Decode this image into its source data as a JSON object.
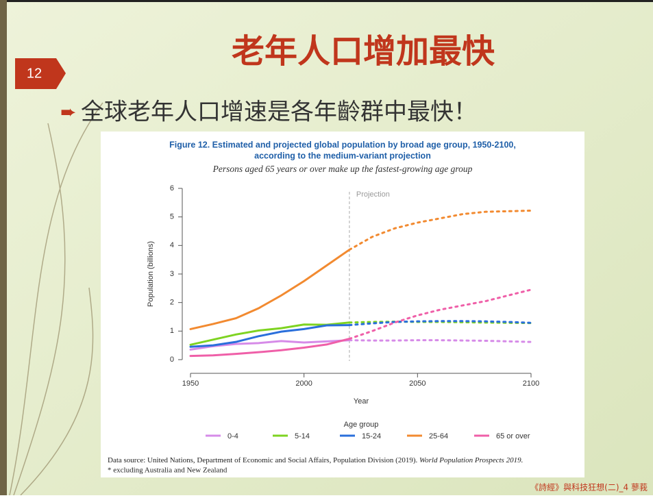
{
  "slide": {
    "number": "12",
    "title": "老年人口增加最快",
    "bullet": "全球老年人口增速是各年齡群中最快！",
    "footer": "《詩經》與科技狂想(二)_4 蓼莪"
  },
  "chart_data": {
    "type": "line",
    "title": [
      "Figure 12. Estimated and projected global population by broad age group, 1950-2100,",
      "according to the medium-variant projection"
    ],
    "subtitle": "Persons aged 65 years or over make up the fastest-growing age group",
    "x_label": "Year",
    "y_label": "Population (billions)",
    "annotation": "Projection",
    "projection_x": 2020,
    "legend_title": "Age group",
    "x": [
      1950,
      1960,
      1970,
      1980,
      1990,
      2000,
      2010,
      2020,
      2030,
      2040,
      2050,
      2060,
      2070,
      2080,
      2090,
      2100
    ],
    "series": [
      {
        "name": "0-4",
        "color": "#d68be8",
        "values": [
          0.35,
          0.47,
          0.55,
          0.58,
          0.65,
          0.6,
          0.64,
          0.68,
          0.67,
          0.67,
          0.68,
          0.68,
          0.67,
          0.66,
          0.64,
          0.62
        ]
      },
      {
        "name": "5-14",
        "color": "#7ed321",
        "values": [
          0.52,
          0.7,
          0.88,
          1.02,
          1.1,
          1.23,
          1.22,
          1.3,
          1.32,
          1.33,
          1.32,
          1.32,
          1.31,
          1.3,
          1.29,
          1.28
        ]
      },
      {
        "name": "15-24",
        "color": "#2a6fdb",
        "values": [
          0.45,
          0.5,
          0.62,
          0.82,
          0.98,
          1.07,
          1.2,
          1.21,
          1.27,
          1.32,
          1.34,
          1.35,
          1.35,
          1.34,
          1.32,
          1.29
        ]
      },
      {
        "name": "25-64",
        "color": "#f28a30",
        "values": [
          1.07,
          1.25,
          1.45,
          1.8,
          2.25,
          2.75,
          3.3,
          3.85,
          4.3,
          4.6,
          4.8,
          4.95,
          5.1,
          5.18,
          5.2,
          5.22
        ]
      },
      {
        "name": "65 or over",
        "color": "#ef5fa8",
        "values": [
          0.13,
          0.15,
          0.2,
          0.26,
          0.33,
          0.42,
          0.53,
          0.73,
          1.0,
          1.3,
          1.55,
          1.75,
          1.9,
          2.05,
          2.25,
          2.45
        ]
      }
    ],
    "xlim": [
      1950,
      2100
    ],
    "xticks": [
      1950,
      2000,
      2050,
      2100
    ],
    "ylim": [
      0,
      6
    ],
    "yticks": [
      0,
      1,
      2,
      3,
      4,
      5,
      6
    ],
    "source": "Data source: United Nations, Department of Economic and Social Affairs, Population Division (2019).",
    "source_italic": "World Population Prospects 2019.",
    "note": "* excluding Australia and New Zealand"
  }
}
